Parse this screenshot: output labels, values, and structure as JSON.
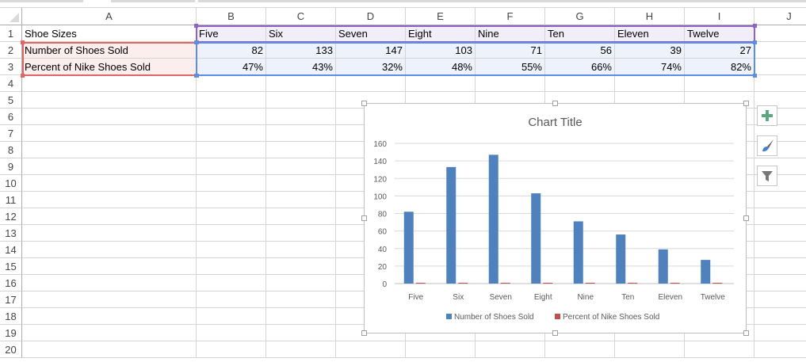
{
  "sheet": {
    "columns": [
      "A",
      "B",
      "C",
      "D",
      "E",
      "F",
      "G",
      "H",
      "I",
      "J"
    ],
    "rows": [
      "1",
      "2",
      "3",
      "4",
      "5",
      "6",
      "7",
      "8",
      "9",
      "10",
      "11",
      "12",
      "13",
      "14",
      "15",
      "16",
      "17",
      "18",
      "19",
      "20"
    ],
    "data": [
      [
        "Shoe Sizes",
        "Five",
        "Six",
        "Seven",
        "Eight",
        "Nine",
        "Ten",
        "Eleven",
        "Twelve"
      ],
      [
        "Number of Shoes Sold",
        "82",
        "133",
        "147",
        "103",
        "71",
        "56",
        "39",
        "27"
      ],
      [
        "Percent of Nike Shoes Sold",
        "47%",
        "43%",
        "32%",
        "48%",
        "55%",
        "66%",
        "74%",
        "82%"
      ]
    ]
  },
  "chart_tools": {
    "elements_icon": "plus-icon",
    "styles_icon": "paintbrush-icon",
    "filters_icon": "funnel-icon"
  },
  "chart_data": {
    "type": "bar",
    "title": "Chart Title",
    "categories": [
      "Five",
      "Six",
      "Seven",
      "Eight",
      "Nine",
      "Ten",
      "Eleven",
      "Twelve"
    ],
    "series": [
      {
        "name": "Number of Shoes Sold",
        "values": [
          82,
          133,
          147,
          103,
          71,
          56,
          39,
          27
        ],
        "color": "#4f81bd"
      },
      {
        "name": "Percent of Nike Shoes Sold",
        "values": [
          0.47,
          0.43,
          0.32,
          0.48,
          0.55,
          0.66,
          0.74,
          0.82
        ],
        "color": "#c0504d"
      }
    ],
    "yticks": [
      "0",
      "20",
      "40",
      "60",
      "80",
      "100",
      "120",
      "140",
      "160"
    ],
    "ylim": [
      0,
      160
    ],
    "grid": true,
    "legend": "bottom"
  }
}
